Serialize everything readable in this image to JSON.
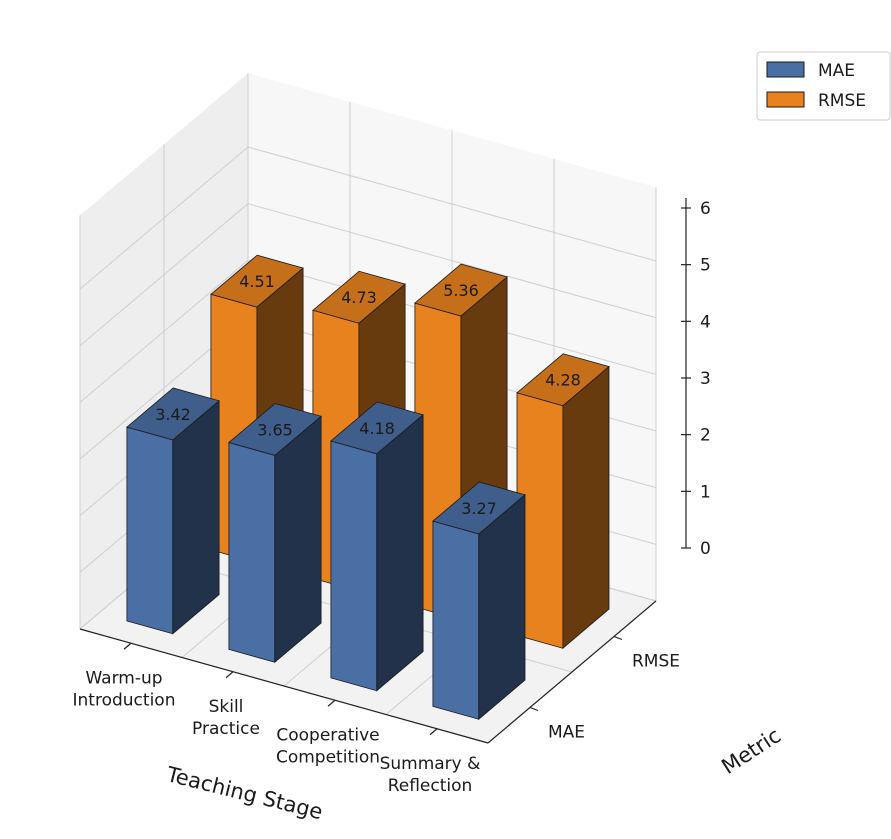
{
  "chart_data": {
    "type": "bar3d",
    "title": "",
    "xlabel": "Teaching Stage",
    "ylabel": "Metric",
    "zlabel": "",
    "categories": [
      [
        "Warm-up",
        "Introduction"
      ],
      [
        "Skill",
        "Practice"
      ],
      [
        "Cooperative",
        "Competition"
      ],
      [
        "Summary &",
        "Reflection"
      ]
    ],
    "metrics": [
      "MAE",
      "RMSE"
    ],
    "zlim": [
      0,
      6
    ],
    "zticks": [
      "0",
      "1",
      "2",
      "3",
      "4",
      "5",
      "6"
    ],
    "series": [
      {
        "name": "MAE",
        "values": [
          3.42,
          3.65,
          4.18,
          3.27
        ],
        "labels": [
          "3.42",
          "3.65",
          "4.18",
          "3.27"
        ],
        "color": "#4a6fa5"
      },
      {
        "name": "RMSE",
        "values": [
          4.51,
          4.73,
          5.36,
          4.28
        ],
        "labels": [
          "4.51",
          "4.73",
          "5.36",
          "4.28"
        ],
        "color": "#e8821e"
      }
    ],
    "legend": {
      "placement": "top-right",
      "entries": [
        "MAE",
        "RMSE"
      ]
    },
    "grid": true
  }
}
